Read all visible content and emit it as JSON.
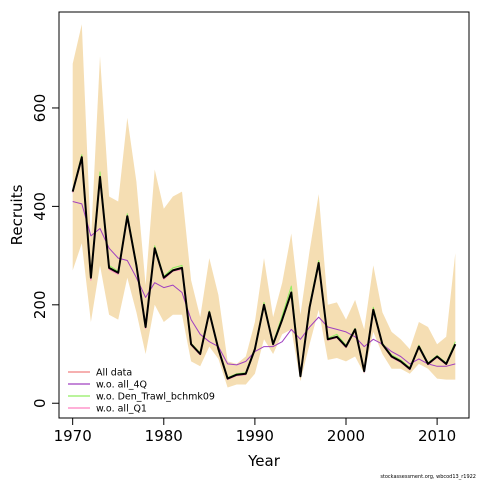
{
  "chart_data": {
    "type": "line",
    "xlabel": "Year",
    "ylabel": "Recruits",
    "xlim": [
      1968.5,
      2013.5
    ],
    "ylim": [
      -30,
      795
    ],
    "x_ticks": [
      1970,
      1980,
      1990,
      2000,
      2010
    ],
    "y_ticks": [
      0,
      200,
      400,
      600
    ],
    "legend_position": "bottom-left",
    "grid": false,
    "credit": "stockassessment.org, wbcod13_r1922",
    "x": [
      1970,
      1971,
      1972,
      1973,
      1974,
      1975,
      1976,
      1977,
      1978,
      1979,
      1980,
      1981,
      1982,
      1983,
      1984,
      1985,
      1986,
      1987,
      1988,
      1989,
      1990,
      1991,
      1992,
      1993,
      1994,
      1995,
      1996,
      1997,
      1998,
      1999,
      2000,
      2001,
      2002,
      2003,
      2004,
      2005,
      2006,
      2007,
      2008,
      2009,
      2010,
      2011,
      2012
    ],
    "confidence_band": {
      "color": "#f5deb3",
      "upper": [
        690,
        770,
        330,
        705,
        420,
        410,
        580,
        450,
        240,
        475,
        395,
        420,
        430,
        250,
        175,
        295,
        220,
        85,
        80,
        95,
        165,
        295,
        175,
        245,
        345,
        180,
        310,
        425,
        200,
        205,
        170,
        210,
        150,
        280,
        185,
        145,
        130,
        110,
        165,
        155,
        120,
        135,
        305
      ],
      "lower": [
        270,
        325,
        165,
        280,
        180,
        170,
        255,
        185,
        100,
        200,
        165,
        180,
        180,
        85,
        75,
        115,
        90,
        32,
        38,
        38,
        60,
        130,
        100,
        140,
        150,
        45,
        120,
        190,
        88,
        92,
        85,
        95,
        60,
        145,
        100,
        70,
        70,
        60,
        80,
        70,
        50,
        48,
        48
      ]
    },
    "series": [
      {
        "name": "All data",
        "color": "#f08080",
        "values": [
          430,
          500,
          255,
          460,
          275,
          265,
          380,
          280,
          155,
          315,
          255,
          270,
          275,
          120,
          100,
          185,
          110,
          50,
          58,
          60,
          110,
          200,
          120,
          170,
          225,
          55,
          195,
          285,
          130,
          135,
          115,
          150,
          65,
          190,
          120,
          95,
          85,
          70,
          115,
          80,
          95,
          80,
          120
        ]
      },
      {
        "name": "w.o. all_4Q",
        "color": "#a040c0",
        "values": [
          410,
          405,
          340,
          355,
          315,
          295,
          290,
          255,
          215,
          245,
          235,
          240,
          225,
          170,
          140,
          125,
          115,
          80,
          78,
          85,
          105,
          115,
          115,
          125,
          150,
          130,
          155,
          175,
          155,
          150,
          145,
          135,
          115,
          130,
          120,
          105,
          95,
          80,
          90,
          80,
          75,
          75,
          80
        ]
      },
      {
        "name": "w.o. Den_Trawl_bchmk09",
        "color": "#90ee60",
        "values": [
          432,
          505,
          260,
          470,
          280,
          268,
          385,
          285,
          158,
          320,
          258,
          275,
          280,
          122,
          102,
          188,
          112,
          52,
          60,
          62,
          112,
          205,
          122,
          178,
          238,
          58,
          200,
          290,
          132,
          140,
          118,
          152,
          68,
          195,
          122,
          98,
          88,
          72,
          118,
          82,
          97,
          82,
          125
        ]
      },
      {
        "name": "w.o. all_Q1",
        "color": "#ff80c0",
        "values": [
          428,
          495,
          250,
          455,
          272,
          262,
          375,
          278,
          152,
          312,
          252,
          268,
          272,
          118,
          98,
          182,
          108,
          48,
          56,
          58,
          108,
          198,
          118,
          168,
          222,
          54,
          193,
          282,
          128,
          133,
          113,
          148,
          63,
          188,
          118,
          93,
          83,
          68,
          113,
          78,
          93,
          78,
          118
        ]
      }
    ],
    "main_line": {
      "color": "#000000",
      "values": [
        430,
        500,
        255,
        460,
        275,
        265,
        380,
        280,
        155,
        315,
        255,
        270,
        275,
        120,
        100,
        185,
        110,
        50,
        58,
        60,
        110,
        200,
        120,
        170,
        225,
        55,
        195,
        285,
        130,
        135,
        115,
        150,
        65,
        190,
        120,
        95,
        85,
        70,
        115,
        80,
        95,
        80,
        120
      ]
    }
  }
}
